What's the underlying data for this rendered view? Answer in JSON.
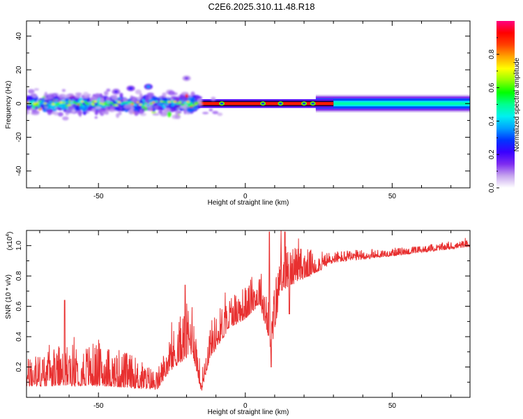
{
  "title": "C2E6.2025.310.11.48.R18",
  "chart_data": [
    {
      "type": "heatmap",
      "title": "C2E6.2025.310.11.48.R18",
      "xlabel": "Height of straight line (km)",
      "ylabel": "Frequency (Hz)",
      "xlim": [
        -74.5,
        76.5
      ],
      "ylim": [
        -50,
        49
      ],
      "xticks": [
        -50,
        0,
        50
      ],
      "yticks": [
        -40,
        -20,
        0,
        20,
        40
      ],
      "colorbar": {
        "label": "Normalized spectral amplitude",
        "range": [
          0,
          1
        ],
        "ticks": [
          0.0,
          0.2,
          0.4,
          0.6,
          0.8
        ],
        "tick_labels": [
          "0.0",
          "0.2",
          "0.4",
          "0.6",
          "0.8"
        ],
        "colormap": [
          "#ffffff",
          "#c7a6ee",
          "#7d2cf0",
          "#3a00ff",
          "#0035ff",
          "#00a0ff",
          "#00f0f0",
          "#00ff90",
          "#00ff00",
          "#90ff00",
          "#ffff00",
          "#ffa500",
          "#ff4000",
          "#ff0000",
          "#ff0080"
        ]
      },
      "band": {
        "center_hz": 0,
        "clutter_region_km": [
          -74.5,
          -16
        ],
        "clutter_half_width_hz": [
          3,
          8
        ],
        "bright_line_region_km": [
          -16,
          30
        ],
        "bright_line_value": 0.9,
        "plateau_region_km": [
          30,
          76.5
        ],
        "plateau_value": 0.48,
        "plateau_half_width_hz": 3,
        "sparse_blobs": [
          {
            "x": -33,
            "y": 10,
            "v": 0.35
          },
          {
            "x": -39,
            "y": 9,
            "v": 0.25
          },
          {
            "x": -20,
            "y": 15,
            "v": 0.15
          },
          {
            "x": -44,
            "y": 7,
            "v": 0.2
          }
        ]
      }
    },
    {
      "type": "line",
      "xlabel": "Height of straight line (km)",
      "ylabel": "SNR (10 * v/v)",
      "y_multiplier": "(x10",
      "y_multiplier_exp": "4",
      "y_multiplier_close": ")",
      "xlim": [
        -74.5,
        76.5
      ],
      "ylim": [
        0,
        1.1
      ],
      "xticks": [
        -50,
        0,
        50
      ],
      "yticks": [
        0.2,
        0.4,
        0.6,
        0.8,
        1.0
      ],
      "ytick_labels": [
        "0.2",
        "0.4",
        "0.6",
        "0.8",
        "1.0"
      ],
      "series": [
        {
          "color": "#e83030",
          "envelope": [
            {
              "x": -74.5,
              "y": 0.1,
              "noise": 0.12
            },
            {
              "x": -60,
              "y": 0.12,
              "noise": 0.18
            },
            {
              "x": -50,
              "y": 0.12,
              "noise": 0.18
            },
            {
              "x": -40,
              "y": 0.1,
              "noise": 0.15
            },
            {
              "x": -30,
              "y": 0.07,
              "noise": 0.08
            },
            {
              "x": -26,
              "y": 0.2,
              "noise": 0.15
            },
            {
              "x": -22,
              "y": 0.28,
              "noise": 0.2
            },
            {
              "x": -18,
              "y": 0.35,
              "noise": 0.25
            },
            {
              "x": -15,
              "y": 0.05,
              "noise": 0.08
            },
            {
              "x": -12,
              "y": 0.3,
              "noise": 0.15
            },
            {
              "x": -5,
              "y": 0.5,
              "noise": 0.15
            },
            {
              "x": 0,
              "y": 0.55,
              "noise": 0.14
            },
            {
              "x": 5,
              "y": 0.65,
              "noise": 0.15
            },
            {
              "x": 9,
              "y": 0.35,
              "noise": 0.25
            },
            {
              "x": 12,
              "y": 0.75,
              "noise": 0.2
            },
            {
              "x": 18,
              "y": 0.8,
              "noise": 0.15
            },
            {
              "x": 25,
              "y": 0.85,
              "noise": 0.08
            },
            {
              "x": 30,
              "y": 0.9,
              "noise": 0.05
            },
            {
              "x": 40,
              "y": 0.92,
              "noise": 0.04
            },
            {
              "x": 55,
              "y": 0.95,
              "noise": 0.03
            },
            {
              "x": 76.5,
              "y": 1.0,
              "noise": 0.03
            }
          ],
          "features": [
            {
              "x": -61.5,
              "y": 0.64
            },
            {
              "x": -20.5,
              "y": 0.74
            },
            {
              "x": 8.2,
              "y": 1.09
            },
            {
              "x": 8.8,
              "y": 0.2
            },
            {
              "x": 13.5,
              "y": 1.09
            },
            {
              "x": 15,
              "y": 0.55
            }
          ]
        }
      ]
    }
  ]
}
